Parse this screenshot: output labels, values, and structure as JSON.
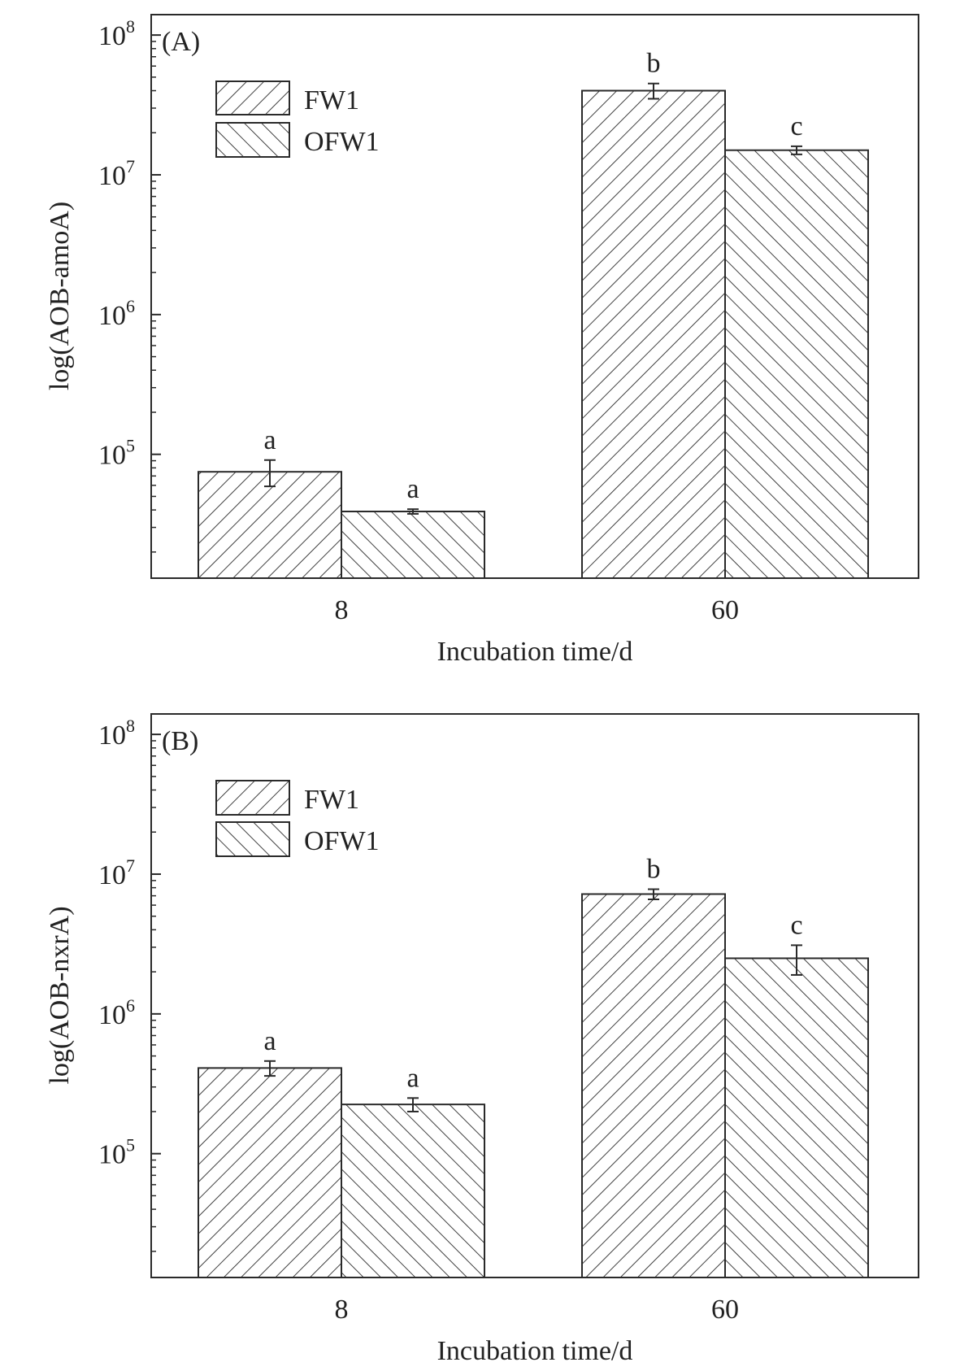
{
  "chart_data": [
    {
      "type": "bar",
      "panel_label": "(A)",
      "categories": [
        "8",
        "60"
      ],
      "xlabel": "Incubation time/d",
      "ylabel": "log(AOB-amoA)",
      "yscale": "log",
      "ylim": [
        13000,
        140000000
      ],
      "yticks": [
        {
          "value": 100000,
          "base": "10",
          "exp": "5"
        },
        {
          "value": 1000000,
          "base": "10",
          "exp": "6"
        },
        {
          "value": 10000000,
          "base": "10",
          "exp": "7"
        },
        {
          "value": 100000000,
          "base": "10",
          "exp": "8"
        }
      ],
      "grid": false,
      "legend_position": "top-left",
      "series": [
        {
          "name": "FW1",
          "hatch": "forward",
          "values": [
            75000,
            40000000
          ],
          "errors": [
            16000,
            5000000
          ],
          "labels": [
            "a",
            "b"
          ]
        },
        {
          "name": "OFW1",
          "hatch": "backward",
          "values": [
            39000,
            15000000
          ],
          "errors": [
            1500,
            1000000
          ],
          "labels": [
            "a",
            "c"
          ]
        }
      ]
    },
    {
      "type": "bar",
      "panel_label": "(B)",
      "categories": [
        "8",
        "60"
      ],
      "xlabel": "Incubation time/d",
      "ylabel": "log(AOB-nxrA)",
      "yscale": "log",
      "ylim": [
        13000,
        140000000
      ],
      "yticks": [
        {
          "value": 100000,
          "base": "10",
          "exp": "5"
        },
        {
          "value": 1000000,
          "base": "10",
          "exp": "6"
        },
        {
          "value": 10000000,
          "base": "10",
          "exp": "7"
        },
        {
          "value": 100000000,
          "base": "10",
          "exp": "8"
        }
      ],
      "grid": false,
      "legend_position": "top-left",
      "series": [
        {
          "name": "FW1",
          "hatch": "forward",
          "values": [
            410000,
            7200000
          ],
          "errors": [
            50000,
            600000
          ],
          "labels": [
            "a",
            "b"
          ]
        },
        {
          "name": "OFW1",
          "hatch": "backward",
          "values": [
            225000,
            2500000
          ],
          "errors": [
            25000,
            600000
          ],
          "labels": [
            "a",
            "c"
          ]
        }
      ]
    }
  ]
}
